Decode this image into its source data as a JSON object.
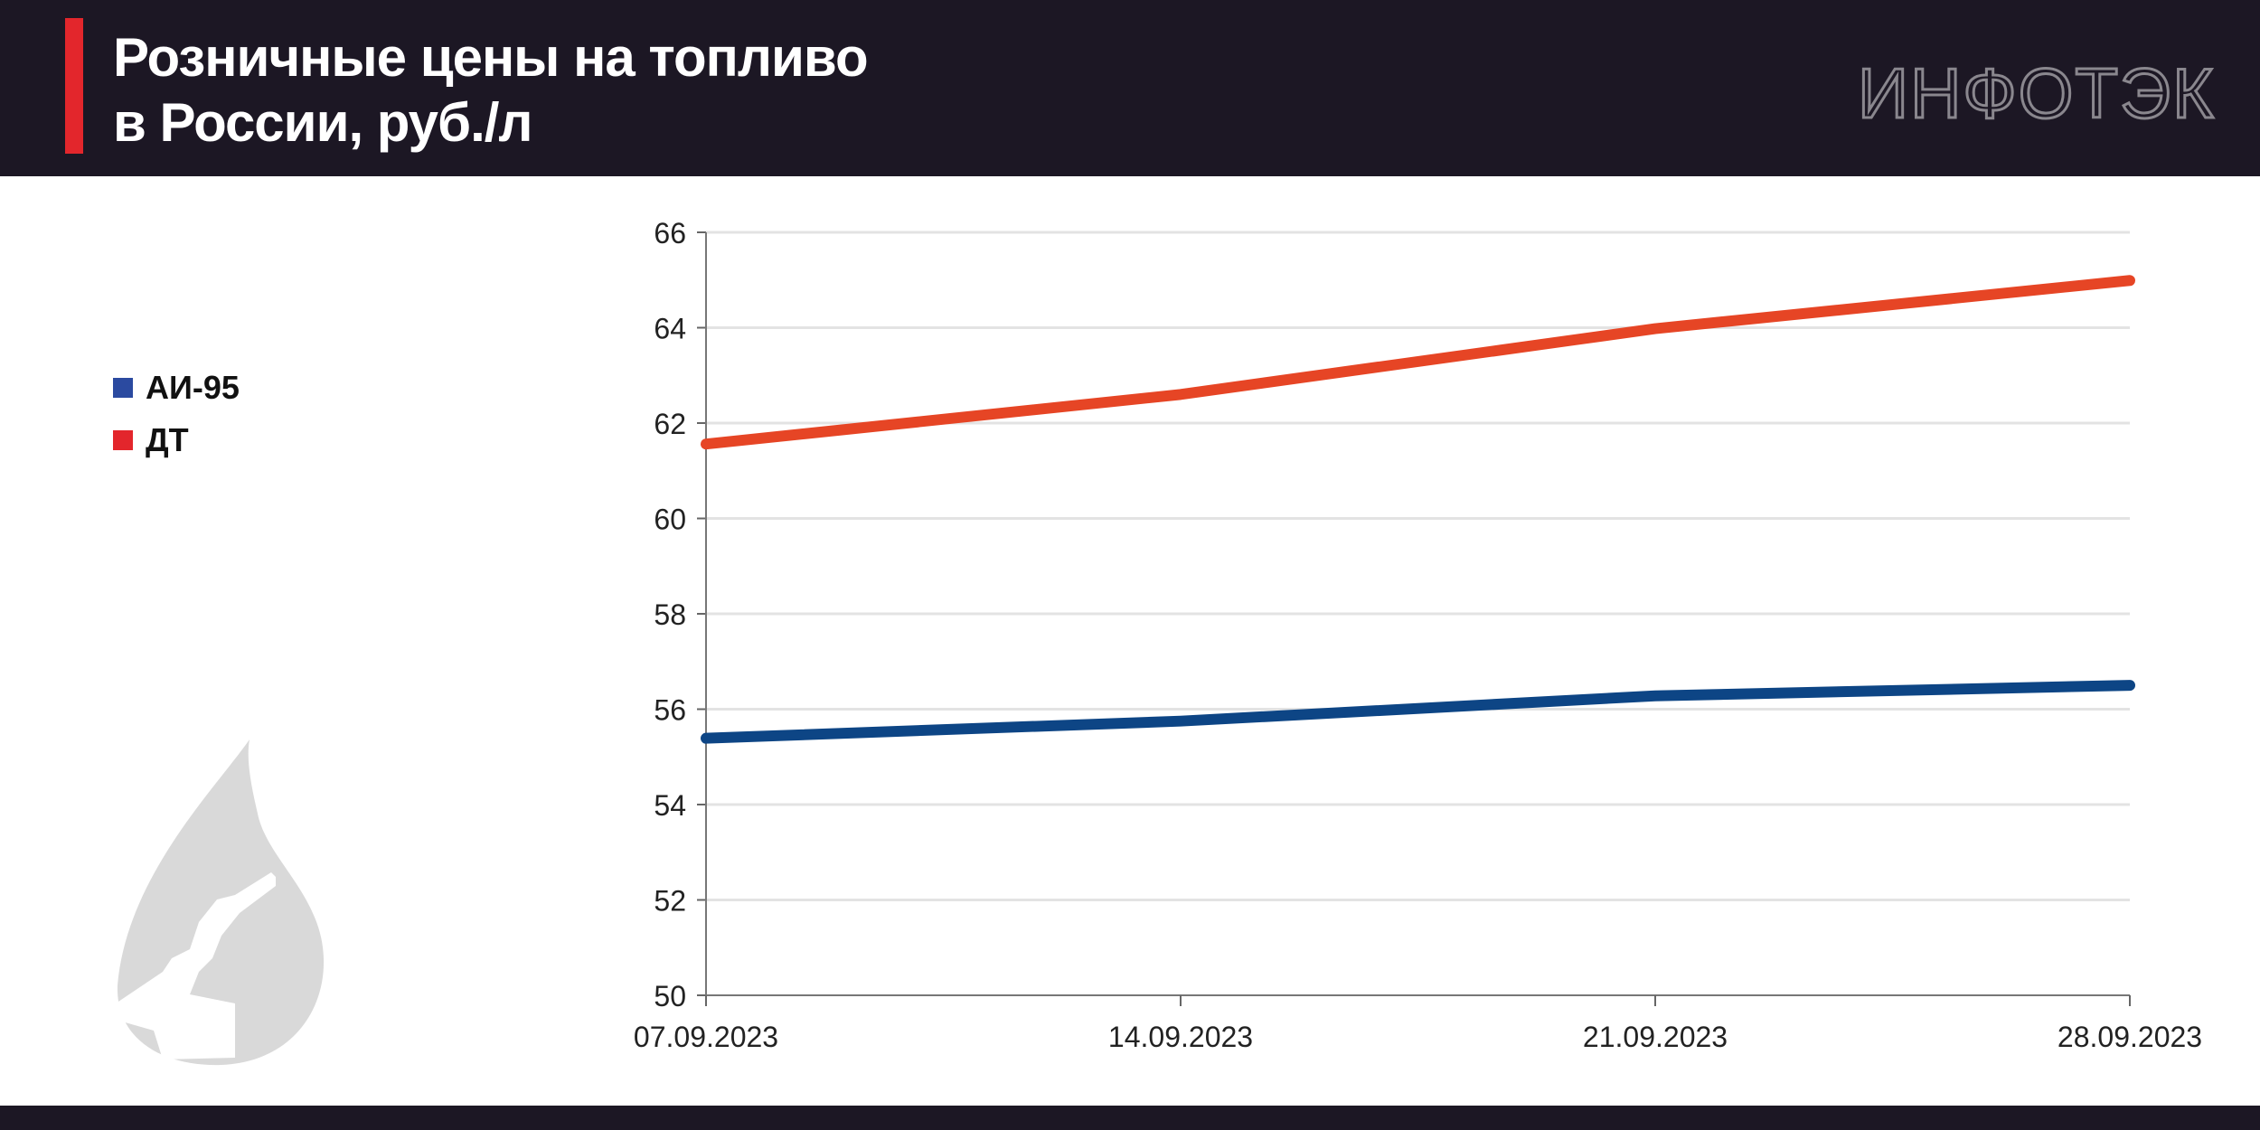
{
  "header": {
    "title_line1": "Розничные цены на топливо",
    "title_line2": "в России, руб./л",
    "logo": "ИНФОТЭК"
  },
  "colors": {
    "header_bg": "#1c1724",
    "accent": "#e3262c",
    "ai95": "#0d4585",
    "dt": "#e64525"
  },
  "chart_data": {
    "type": "line",
    "title": "Розничные цены на топливо в России, руб./л",
    "xlabel": "",
    "ylabel": "",
    "categories": [
      "07.09.2023",
      "14.09.2023",
      "21.09.2023",
      "28.09.2023"
    ],
    "ylim": [
      50,
      66
    ],
    "yticks": [
      50,
      52,
      54,
      56,
      58,
      60,
      62,
      64,
      66
    ],
    "grid": true,
    "legend_position": "left",
    "series": [
      {
        "name": "АИ-95",
        "color": "#0d4585",
        "legend_color": "#2b4aa0",
        "values": [
          55.39,
          55.75,
          56.28,
          56.5
        ]
      },
      {
        "name": "ДТ",
        "color": "#e64525",
        "legend_color": "#e3262c",
        "values": [
          61.56,
          62.6,
          63.98,
          64.99
        ]
      }
    ]
  }
}
